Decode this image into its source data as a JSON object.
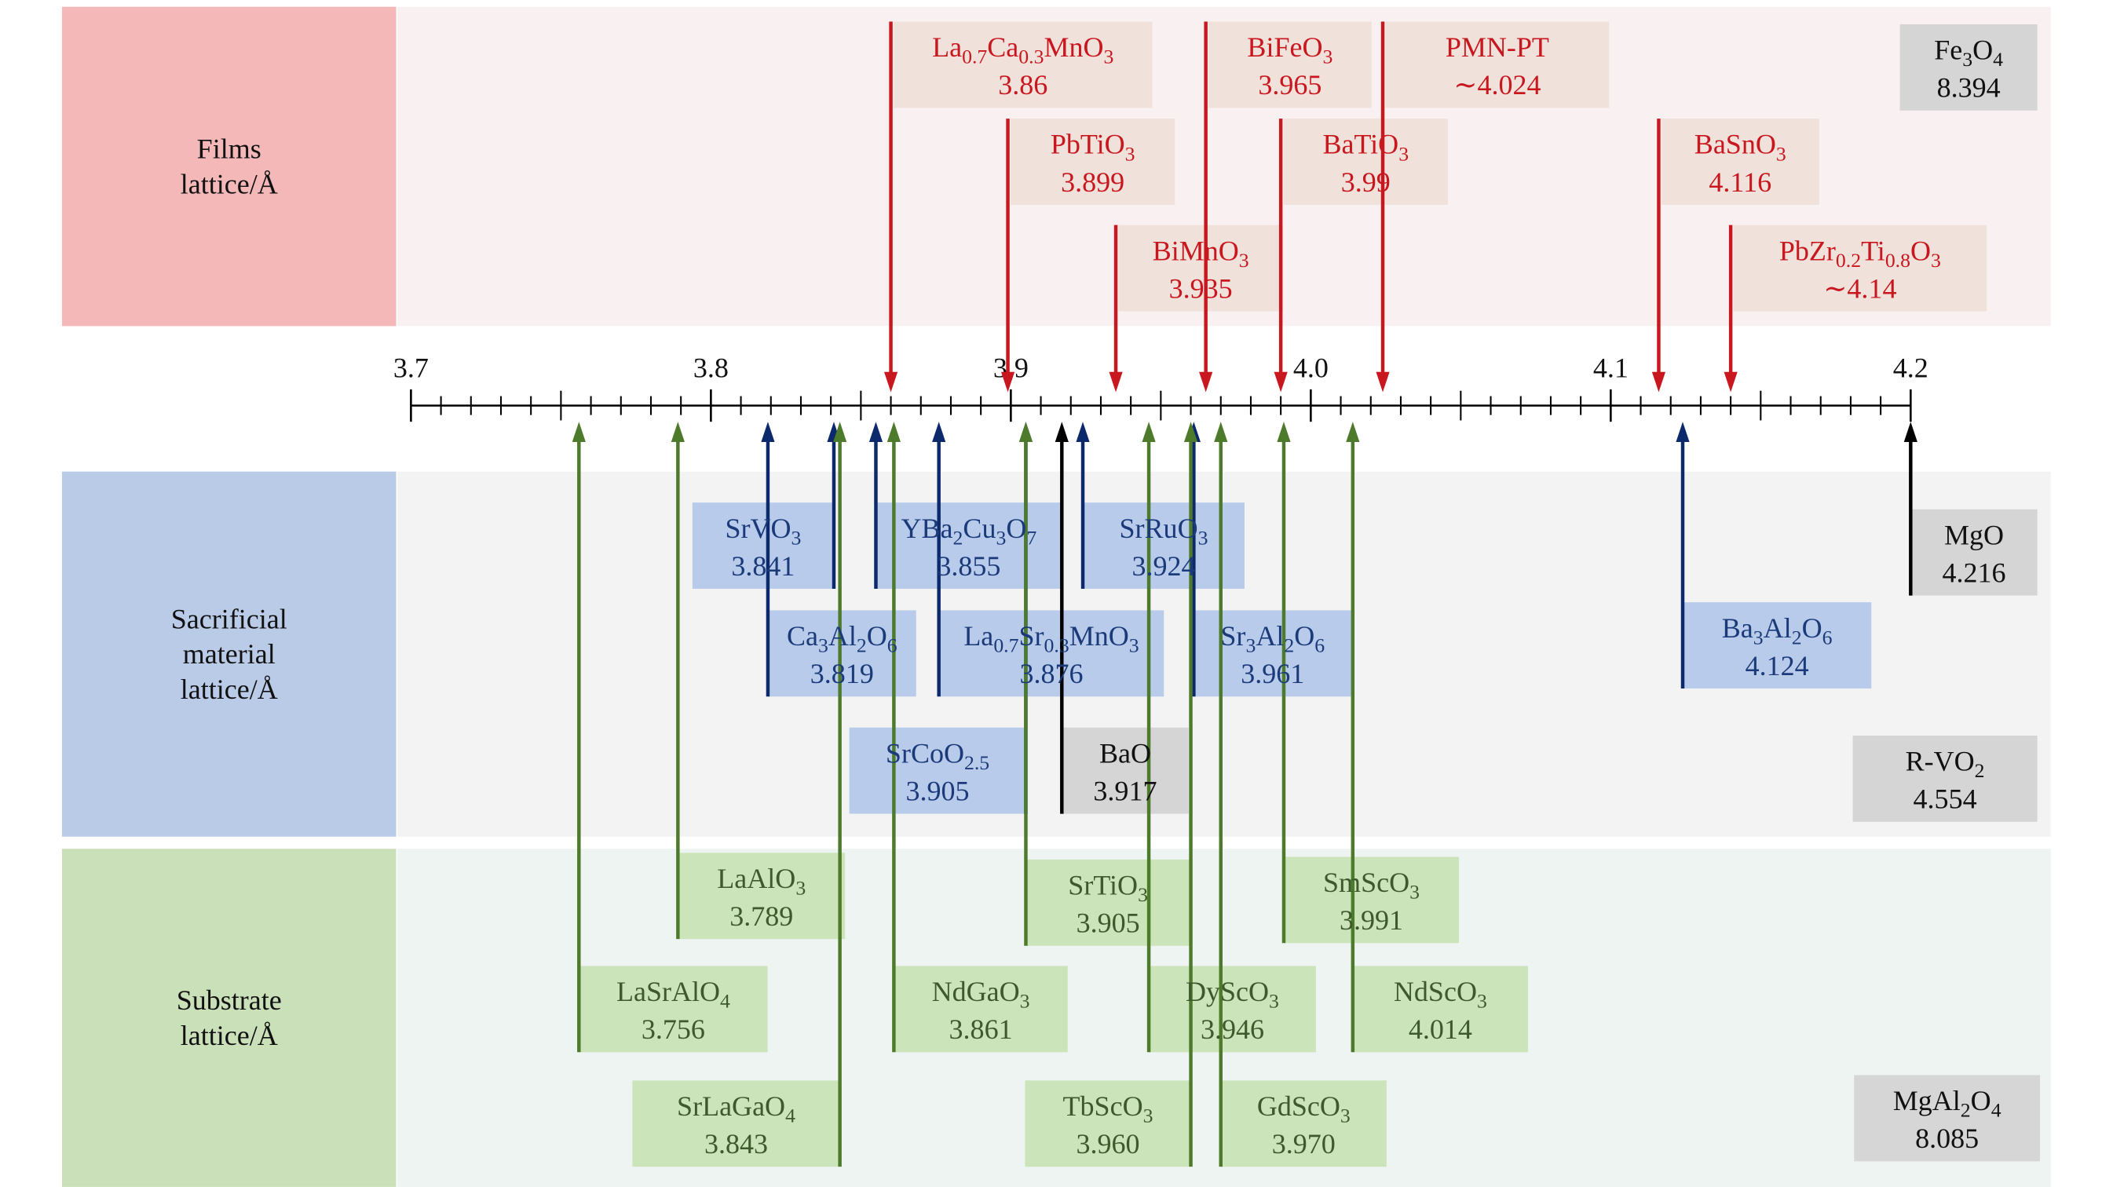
{
  "axis": {
    "lim": [
      3.7,
      4.2
    ],
    "ticks": [
      3.7,
      3.8,
      3.9,
      {
        "value": 4,
        "label": "4.0"
      },
      4.1,
      4.2
    ],
    "minor_step": 0.01
  },
  "groups": [
    {
      "title": [
        "Films",
        "lattice/Å"
      ],
      "items": [
        {
          "name": [
            "La",
            "0.7",
            "Ca",
            "0.3",
            "MnO",
            "3"
          ],
          "value": 3.86
        },
        {
          "name": [
            "PbTiO",
            "3"
          ],
          "value": 3.899
        },
        {
          "name": [
            "BiMnO",
            "3"
          ],
          "value": 3.935
        },
        {
          "name": [
            "BiFeO",
            "3"
          ],
          "value": 3.965
        },
        {
          "name": [
            "BaTiO",
            "3"
          ],
          "value": 3.99
        },
        {
          "name": [
            "PMN-PT"
          ],
          "value": 4.024,
          "value_label": "∼4.024"
        },
        {
          "name": [
            "BaSnO",
            "3"
          ],
          "value": 4.116
        },
        {
          "name": [
            "PbZr",
            "0.2",
            "Ti",
            "0.8",
            "O",
            "3"
          ],
          "value": 4.14,
          "value_label": "∼4.14"
        },
        {
          "name": [
            "Fe",
            "3",
            "O",
            "4"
          ],
          "value": 8.394
        }
      ]
    },
    {
      "title": [
        "Sacrificial",
        "material",
        "lattice/Å"
      ],
      "items": [
        {
          "name": [
            "SrVO",
            "3"
          ],
          "value": 3.841
        },
        {
          "name": [
            "Ca",
            "3",
            "Al",
            "2",
            "O",
            "6"
          ],
          "value": 3.819
        },
        {
          "name": [
            "YBa",
            "2",
            "Cu",
            "3",
            "O",
            "7"
          ],
          "value": 3.855
        },
        {
          "name": [
            "La",
            "0.7",
            "Sr",
            "0.3",
            "MnO",
            "3"
          ],
          "value": 3.876
        },
        {
          "name": [
            "SrCoO",
            "2.5"
          ],
          "value": 3.905
        },
        {
          "name": [
            "SrRuO",
            "3"
          ],
          "value": 3.924
        },
        {
          "name": [
            "Sr",
            "3",
            "Al",
            "2",
            "O",
            "6"
          ],
          "value": 3.961
        },
        {
          "name": [
            "Ba",
            "3",
            "Al",
            "2",
            "O",
            "6"
          ],
          "value": 4.124
        },
        {
          "name": [
            "BaO"
          ],
          "value": 3.917
        },
        {
          "name": [
            "MgO"
          ],
          "value": 4.216
        },
        {
          "name": [
            "R-VO",
            "2"
          ],
          "value": 4.554
        }
      ]
    },
    {
      "title": [
        "Substrate",
        "lattice/Å"
      ],
      "items": [
        {
          "name": [
            "LaSrAlO",
            "4"
          ],
          "value": 3.756
        },
        {
          "name": [
            "LaAlO",
            "3"
          ],
          "value": 3.789
        },
        {
          "name": [
            "SrLaGaO",
            "4"
          ],
          "value": 3.843
        },
        {
          "name": [
            "NdGaO",
            "3"
          ],
          "value": 3.861
        },
        {
          "name": [
            "SrTiO",
            "3"
          ],
          "value": 3.905
        },
        {
          "name": [
            "DyScO",
            "3"
          ],
          "value": 3.946
        },
        {
          "name": [
            "TbScO",
            "3"
          ],
          "value": 3.96,
          "value_label": "3.960"
        },
        {
          "name": [
            "GdScO",
            "3"
          ],
          "value": 3.97,
          "value_label": "3.970"
        },
        {
          "name": [
            "SmScO",
            "3"
          ],
          "value": 3.991
        },
        {
          "name": [
            "NdScO",
            "3"
          ],
          "value": 4.014
        },
        {
          "name": [
            "MgAl",
            "2",
            "O",
            "4"
          ],
          "value": 8.085
        }
      ]
    }
  ]
}
